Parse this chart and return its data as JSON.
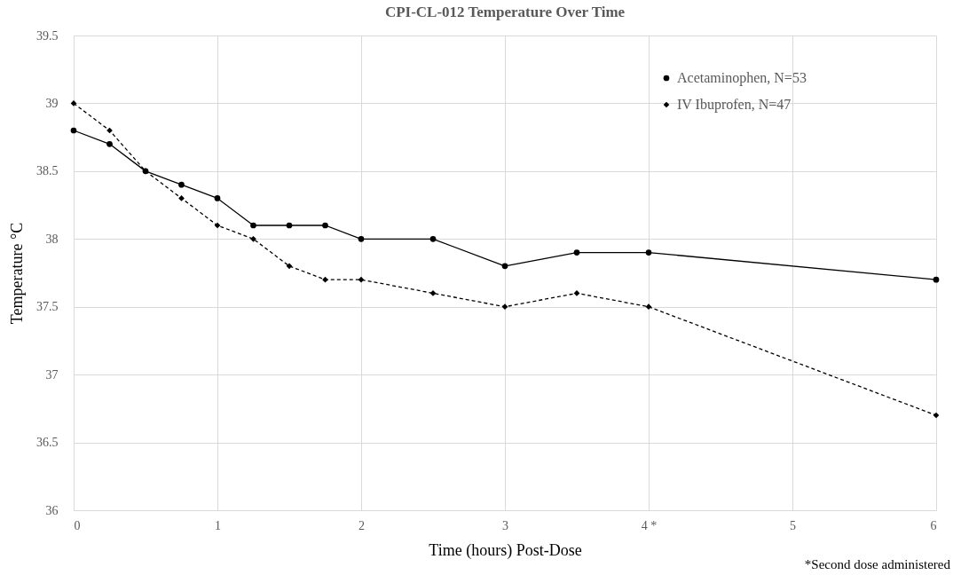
{
  "chart_data": {
    "type": "line",
    "title": "CPI-CL-012 Temperature Over Time",
    "xlabel": "Time (hours) Post-Dose",
    "ylabel": "Temperature °C",
    "x": [
      0,
      0.25,
      0.5,
      0.75,
      1,
      1.25,
      1.5,
      1.75,
      2,
      2.5,
      3,
      3.5,
      4,
      6
    ],
    "series": [
      {
        "name": "Acetaminophen, N=53",
        "color": "#000000",
        "marker": "circle",
        "line_style": "solid",
        "values": [
          38.8,
          38.7,
          38.5,
          38.4,
          38.3,
          38.1,
          38.1,
          38.1,
          38.0,
          38.0,
          37.8,
          37.9,
          37.9,
          37.7
        ]
      },
      {
        "name": "IV Ibuprofen, N=47",
        "color": "#000000",
        "marker": "diamond",
        "line_style": "dashed",
        "values": [
          39.0,
          38.8,
          38.5,
          38.3,
          38.1,
          38.0,
          37.8,
          37.7,
          37.7,
          37.6,
          37.5,
          37.6,
          37.5,
          36.7
        ]
      }
    ],
    "xlim": [
      0,
      6
    ],
    "xticks": [
      0,
      1,
      2,
      3,
      {
        "value": 4,
        "label": "4 *"
      },
      5,
      6
    ],
    "ylim": [
      36,
      39.5
    ],
    "yticks": [
      36,
      36.5,
      37,
      37.5,
      38,
      38.5,
      39,
      39.5
    ],
    "grid": true,
    "legend": "top right",
    "annotations": [
      "*Second dose administered"
    ]
  }
}
